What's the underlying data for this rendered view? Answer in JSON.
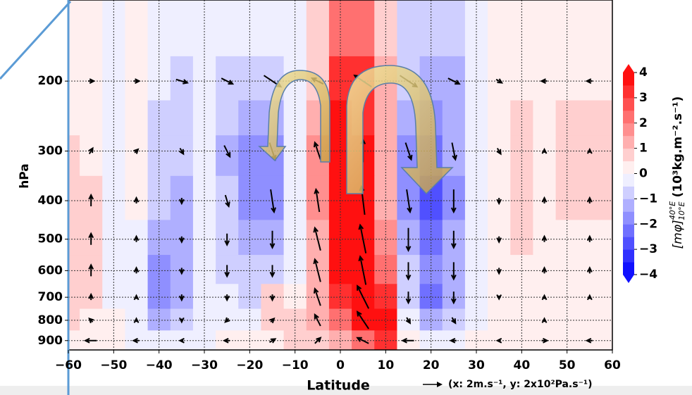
{
  "chart_data": {
    "type": "contour",
    "x_label": "Latitude",
    "y_label": "hPa",
    "quiver_key": "(x: 2m.s⁻¹, y: 2x10²Pa.s⁻¹)",
    "colorbar_label": {
      "base": "[mφ]",
      "sup": "40°E",
      "sub": "10°E",
      "unit": "(10³kg.m⁻².s⁻¹)"
    },
    "xlim": [
      -60,
      60
    ],
    "xticks": [
      {
        "value": -60,
        "label": "−60"
      },
      {
        "value": -50,
        "label": "−50"
      },
      {
        "value": -40,
        "label": "−40"
      },
      {
        "value": -30,
        "label": "−30"
      },
      {
        "value": -20,
        "label": "−20"
      },
      {
        "value": -10,
        "label": "−10"
      },
      0,
      10,
      20,
      30,
      40,
      50,
      60
    ],
    "ylim": [
      950,
      125
    ],
    "ylog": true,
    "yticks": [
      200,
      300,
      400,
      500,
      600,
      700,
      800,
      900
    ],
    "grid": true,
    "clim": [
      -4,
      4
    ],
    "clevel_step": 0.5,
    "cticks": [
      {
        "value": -4,
        "label": "−4"
      },
      {
        "value": -3,
        "label": "−3"
      },
      {
        "value": -2,
        "label": "−2"
      },
      {
        "value": -1,
        "label": "−1"
      },
      0,
      1,
      2,
      3,
      4
    ],
    "x": [
      -60,
      -55,
      -50,
      -45,
      -40,
      -35,
      -30,
      -25,
      -20,
      -15,
      -10,
      -5,
      0,
      5,
      10,
      15,
      20,
      25,
      30,
      35,
      40,
      45,
      50,
      55,
      60
    ],
    "levels": [
      150,
      200,
      250,
      300,
      400,
      500,
      600,
      700,
      800,
      900
    ],
    "z": [
      [
        0,
        0,
        -0.3,
        0,
        -0.3,
        -0.3,
        -0.3,
        -0.5,
        -0.5,
        -0.5,
        -0.3,
        0.5,
        2,
        2,
        0.5,
        -0.8,
        -1,
        -1,
        -0.5,
        0,
        0.3,
        0.3,
        0.3,
        0.3,
        0.3
      ],
      [
        0.3,
        0.2,
        -0.3,
        0,
        -0.5,
        -0.8,
        -0.5,
        -0.8,
        -1,
        -1,
        -0.5,
        0.5,
        3,
        3,
        1,
        -1,
        -1.5,
        -1.2,
        -0.5,
        0,
        0.3,
        0.3,
        0.3,
        0.3,
        0.3
      ],
      [
        0.3,
        0.3,
        -0.3,
        0,
        -0.8,
        -1,
        -0.5,
        -1,
        -1.5,
        -1.5,
        -0.5,
        1,
        3.5,
        3,
        1,
        -1.5,
        -2,
        -1.5,
        -0.5,
        0,
        0.5,
        0.3,
        0.5,
        0.5,
        0.5
      ],
      [
        0.5,
        0.3,
        -0.3,
        0,
        -1,
        -1,
        -0.5,
        -1.2,
        -2,
        -2,
        -0.5,
        1.5,
        4,
        3.5,
        1,
        -2,
        -2.5,
        -1.5,
        -0.5,
        0,
        0.5,
        0.3,
        0.5,
        0.5,
        0.5
      ],
      [
        0.5,
        0.5,
        -0.3,
        0,
        -1,
        -1.2,
        -0.5,
        -1,
        -2,
        -2,
        -0.5,
        1.5,
        4,
        4,
        1,
        -2,
        -3,
        -2,
        -0.5,
        0,
        0.5,
        0.3,
        0.5,
        0.5,
        0.5
      ],
      [
        0.8,
        0.5,
        -0.3,
        -0.3,
        -1.5,
        -1.2,
        -0.5,
        -1,
        -1.5,
        -1.5,
        -0.5,
        1,
        4,
        4,
        1.5,
        -1.5,
        -2.5,
        -1.5,
        -0.5,
        0.3,
        0.5,
        0.3,
        0.3,
        0.3,
        0.3
      ],
      [
        0.8,
        0.5,
        -0.3,
        -0.3,
        -2,
        -1.5,
        -0.5,
        -0.8,
        -1,
        -1,
        -0.3,
        1,
        3.5,
        4,
        2,
        -1,
        -2,
        -1.5,
        -0.5,
        0.3,
        0.3,
        0.3,
        0.3,
        0.3,
        0.3
      ],
      [
        0.5,
        0.5,
        -0.3,
        -0.3,
        -2,
        -1.5,
        -0.5,
        -0.5,
        -0.8,
        0.5,
        0.3,
        1,
        3,
        4,
        3,
        -1,
        -2.5,
        -1.5,
        -0.5,
        0.3,
        0.3,
        0.3,
        0.3,
        0.3,
        0.3
      ],
      [
        0.5,
        0.3,
        0,
        -0.3,
        -1.5,
        -1,
        -0.3,
        -0.3,
        -0.3,
        0.5,
        0.5,
        1,
        2,
        3.5,
        3.5,
        -0.5,
        -1.5,
        -1,
        -0.3,
        0,
        0.3,
        0,
        0.3,
        0.3,
        0.3
      ],
      [
        0.3,
        0,
        0,
        -0.3,
        -0.5,
        -0.5,
        -0.3,
        0,
        0,
        0.3,
        0.5,
        0.5,
        1,
        2,
        3,
        0,
        -0.5,
        -0.5,
        0,
        0,
        0,
        0,
        0,
        0,
        0
      ]
    ],
    "quiver": {
      "x": [
        -55,
        -45,
        -35,
        -25,
        -15,
        -5,
        5,
        15,
        25,
        35,
        45,
        55
      ],
      "levels": [
        200,
        300,
        400,
        500,
        600,
        700,
        800,
        900
      ],
      "u": [
        [
          0.5,
          0.5,
          1,
          1,
          1.5,
          -1,
          -1.5,
          1.5,
          1,
          0.5,
          -0.5,
          -0.5
        ],
        [
          0.3,
          0.3,
          0.3,
          0.5,
          0.5,
          -0.5,
          0,
          0.5,
          0.3,
          0.3,
          0,
          0
        ],
        [
          0,
          0,
          0,
          0.3,
          0.3,
          -0.3,
          -0.3,
          0.3,
          0,
          0,
          0,
          0
        ],
        [
          0,
          0,
          0,
          0,
          0,
          -0.5,
          -0.5,
          0,
          0,
          0,
          0,
          0
        ],
        [
          0,
          0,
          0,
          0,
          0,
          -0.5,
          -0.5,
          0,
          0,
          0,
          0,
          0
        ],
        [
          0,
          0,
          0,
          0,
          0,
          -0.5,
          -1,
          0,
          0,
          0,
          0,
          0
        ],
        [
          -0.3,
          0,
          0,
          -0.3,
          0.3,
          -0.5,
          -1,
          0.3,
          0.3,
          0,
          0,
          0
        ],
        [
          -1,
          -0.5,
          -0.3,
          -0.5,
          0.5,
          0.5,
          -1,
          -1,
          -0.5,
          -0.3,
          0.5,
          -0.5
        ]
      ],
      "v": [
        [
          0,
          0,
          -0.3,
          -0.5,
          -1,
          0.5,
          1,
          -1,
          -0.5,
          -0.3,
          0,
          0
        ],
        [
          0.5,
          0.3,
          -0.5,
          -1,
          -1.5,
          1.5,
          2,
          -1.5,
          -1.5,
          -0.5,
          0.3,
          0.3
        ],
        [
          1,
          0.5,
          -0.5,
          -1,
          -2,
          2,
          2.5,
          -2,
          -2,
          -0.5,
          0.5,
          0.5
        ],
        [
          1,
          0.5,
          -0.5,
          -1,
          -1.5,
          2,
          2.5,
          -2,
          -1.5,
          -0.5,
          0.5,
          0.5
        ],
        [
          1,
          0.5,
          -0.5,
          -1,
          -1,
          2,
          2.5,
          -1.5,
          -1.5,
          -0.5,
          0.5,
          0.5
        ],
        [
          0.5,
          0.3,
          -0.5,
          -0.5,
          -0.5,
          1.5,
          2,
          -1,
          -1,
          -0.3,
          0.3,
          0.3
        ],
        [
          0.3,
          0.3,
          -0.3,
          -0.3,
          0.3,
          1,
          1.5,
          -0.5,
          -0.5,
          0,
          0.3,
          0
        ],
        [
          0,
          0,
          0,
          0,
          0.3,
          0.5,
          0.5,
          0,
          0,
          0,
          0,
          0
        ]
      ]
    }
  }
}
